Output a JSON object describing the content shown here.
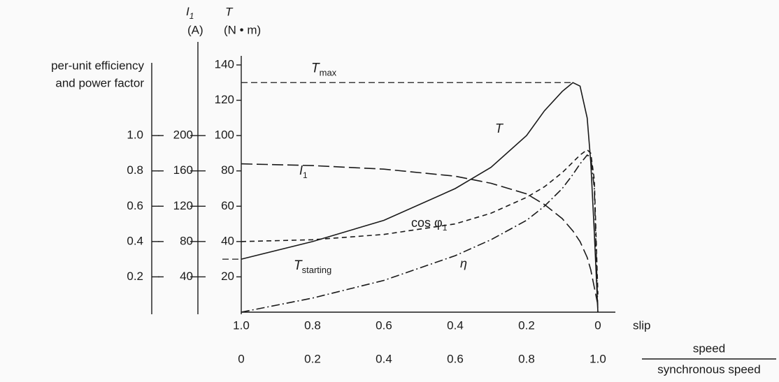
{
  "chart_data": {
    "type": "line",
    "axis_headers": {
      "y2": {
        "symbol": "I",
        "sub": "1",
        "unit": "(A)"
      },
      "y": {
        "symbol": "T",
        "unit": "(N • m)"
      },
      "y3": {
        "lines": [
          "per-unit efficiency",
          "and power factor"
        ]
      }
    },
    "xlabel": "slip",
    "x2label": {
      "numerator": "speed",
      "denominator": "synchronous speed"
    },
    "x": [
      1,
      0.8,
      0.6,
      0.4,
      0.3,
      0.2,
      0.15,
      0.1,
      0.07,
      0.05,
      0.03,
      0.02,
      0.01,
      0
    ],
    "xlim": [
      1,
      0
    ],
    "xticks": [
      {
        "value": 1,
        "label": "1.0"
      },
      0.8,
      0.6,
      0.4,
      0.2,
      0
    ],
    "x2lim": [
      0,
      1
    ],
    "x2ticks": [
      0,
      0.2,
      0.4,
      0.6,
      0.8,
      {
        "value": 1,
        "label": "1.0"
      }
    ],
    "ylim": [
      0,
      140
    ],
    "yticks": [
      20,
      40,
      60,
      80,
      100,
      120,
      140
    ],
    "y2lim": [
      0,
      280
    ],
    "y2ticks": [
      40,
      80,
      120,
      160,
      200
    ],
    "y3lim": [
      0,
      1.4
    ],
    "y3ticks": [
      0.2,
      0.4,
      0.6,
      0.8,
      {
        "value": 1,
        "label": "1.0"
      }
    ],
    "series": [
      {
        "name": "T",
        "style": "solid",
        "color": "#1a1a1a",
        "values": [
          30,
          40,
          52,
          70,
          82,
          100,
          114,
          125,
          130,
          128,
          110,
          85,
          45,
          0
        ]
      },
      {
        "name": "I",
        "name_sub": "1",
        "axis": "y2",
        "style": "dashed",
        "color": "#1a1a1a",
        "values": [
          168,
          166,
          162,
          154,
          146,
          134,
          122,
          106,
          92,
          80,
          62,
          48,
          28,
          8
        ]
      },
      {
        "name": "cos φ",
        "name_sub": "1",
        "axis": "y3",
        "style": "shortdash",
        "color": "#1a1a1a",
        "values": [
          0.4,
          0.41,
          0.44,
          0.5,
          0.56,
          0.65,
          0.71,
          0.79,
          0.85,
          0.89,
          0.92,
          0.9,
          0.75,
          0.1
        ]
      },
      {
        "name": "η",
        "axis": "y3",
        "style": "dashdot",
        "color": "#1a1a1a",
        "values": [
          0,
          0.08,
          0.18,
          0.32,
          0.41,
          0.52,
          0.6,
          0.7,
          0.78,
          0.84,
          0.89,
          0.88,
          0.7,
          0
        ]
      }
    ],
    "reference_lines": [
      {
        "y": 130,
        "text": "T",
        "sub": "max"
      },
      {
        "y": 30,
        "text": "T",
        "sub": "starting"
      }
    ]
  }
}
